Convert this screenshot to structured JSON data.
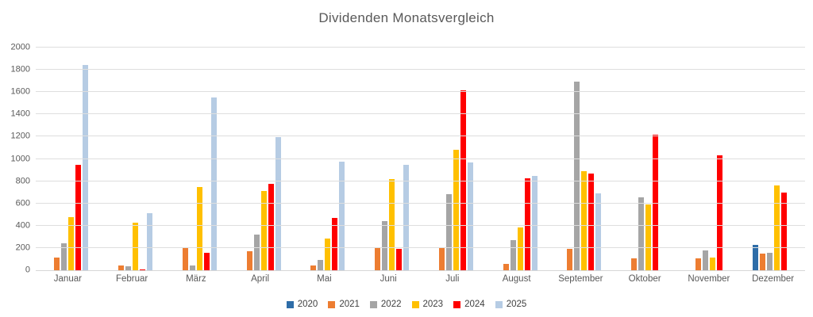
{
  "chart_data": {
    "type": "bar",
    "title": "Dividenden Monatsvergleich",
    "xlabel": "",
    "ylabel": "",
    "ylim": [
      0,
      2000
    ],
    "y_ticks": [
      0,
      200,
      400,
      600,
      800,
      1000,
      1200,
      1400,
      1600,
      1800,
      2000
    ],
    "grid": true,
    "legend_position": "bottom",
    "categories": [
      "Januar",
      "Februar",
      "März",
      "April",
      "Mai",
      "Juni",
      "Juli",
      "August",
      "September",
      "Oktober",
      "November",
      "Dezember"
    ],
    "series": [
      {
        "name": "2020",
        "color": "#2E6DA8",
        "values": [
          null,
          null,
          null,
          null,
          null,
          null,
          null,
          null,
          null,
          null,
          null,
          230
        ]
      },
      {
        "name": "2021",
        "color": "#ED7D31",
        "values": [
          115,
          40,
          210,
          170,
          45,
          205,
          205,
          60,
          190,
          105,
          105,
          150
        ]
      },
      {
        "name": "2022",
        "color": "#A5A5A5",
        "values": [
          245,
          35,
          45,
          320,
          90,
          440,
          680,
          270,
          1695,
          655,
          175,
          160
        ]
      },
      {
        "name": "2023",
        "color": "#FFC000",
        "values": [
          480,
          425,
          745,
          710,
          285,
          820,
          1085,
          385,
          890,
          590,
          115,
          760
        ]
      },
      {
        "name": "2024",
        "color": "#FF0000",
        "values": [
          945,
          10,
          155,
          775,
          470,
          195,
          1615,
          825,
          865,
          1215,
          1035,
          700
        ]
      },
      {
        "name": "2025",
        "color": "#B6CCE4",
        "values": [
          1845,
          510,
          1550,
          1195,
          975,
          950,
          965,
          845,
          690,
          null,
          null,
          null
        ]
      }
    ],
    "colors": {
      "title_text": "#595959",
      "axis_text": "#595959",
      "gridline": "#DEDEDE",
      "background": "#FFFFFF"
    }
  }
}
